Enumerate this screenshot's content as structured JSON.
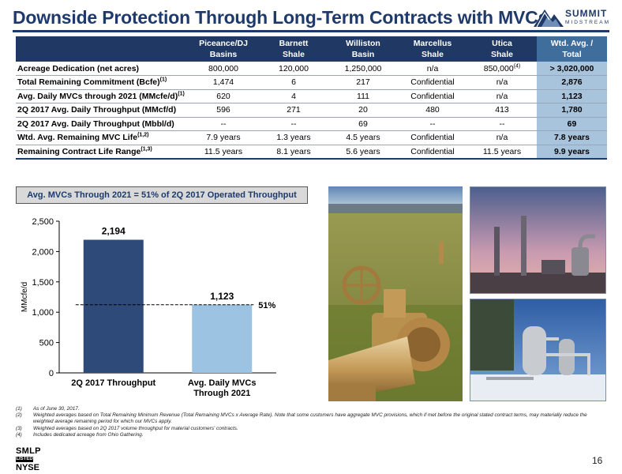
{
  "header": {
    "title": "Downside Protection Through Long-Term Contracts with MVCs",
    "logo_word": "SUMMIT",
    "logo_sub": "MIDSTREAM"
  },
  "table": {
    "columns": [
      {
        "line1": "Piceance/DJ",
        "line2": "Basins"
      },
      {
        "line1": "Barnett",
        "line2": "Shale"
      },
      {
        "line1": "Williston",
        "line2": "Basin"
      },
      {
        "line1": "Marcellus",
        "line2": "Shale"
      },
      {
        "line1": "Utica",
        "line2": "Shale"
      },
      {
        "line1": "Wtd. Avg. /",
        "line2": "Total"
      }
    ],
    "rows": [
      {
        "label": "Acreage Dedication (net acres)",
        "sup": "",
        "cells": [
          "800,000",
          "120,000",
          "1,250,000",
          "n/a",
          "850,000",
          "> 3,020,000"
        ],
        "cell_sup": [
          "",
          "",
          "",
          "",
          "(4)",
          ""
        ]
      },
      {
        "label": "Total Remaining Commitment (Bcfe)",
        "sup": "(1)",
        "cells": [
          "1,474",
          "6",
          "217",
          "Confidential",
          "n/a",
          "2,876"
        ],
        "cell_sup": [
          "",
          "",
          "",
          "",
          "",
          ""
        ]
      },
      {
        "label": "Avg. Daily MVCs through 2021 (MMcfe/d)",
        "sup": "(1)",
        "cells": [
          "620",
          "4",
          "111",
          "Confidential",
          "n/a",
          "1,123"
        ],
        "cell_sup": [
          "",
          "",
          "",
          "",
          "",
          ""
        ]
      },
      {
        "label": "2Q 2017 Avg. Daily Throughput (MMcf/d)",
        "sup": "",
        "cells": [
          "596",
          "271",
          "20",
          "480",
          "413",
          "1,780"
        ],
        "cell_sup": [
          "",
          "",
          "",
          "",
          "",
          ""
        ]
      },
      {
        "label": "2Q 2017 Avg. Daily Throughput (Mbbl/d)",
        "sup": "",
        "cells": [
          "--",
          "--",
          "69",
          "--",
          "--",
          "69"
        ],
        "cell_sup": [
          "",
          "",
          "",
          "",
          "",
          ""
        ]
      },
      {
        "label": "Wtd. Avg. Remaining MVC Life",
        "sup": "(1,2)",
        "cells": [
          "7.9 years",
          "1.3 years",
          "4.5 years",
          "Confidential",
          "n/a",
          "7.8 years"
        ],
        "cell_sup": [
          "",
          "",
          "",
          "",
          "",
          ""
        ]
      },
      {
        "label": "Remaining Contract Life Range",
        "sup": "(1,3)",
        "cells": [
          "11.5 years",
          "8.1 years",
          "5.6 years",
          "Confidential",
          "11.5 years",
          "9.9 years"
        ],
        "cell_sup": [
          "",
          "",
          "",
          "",
          "",
          ""
        ]
      }
    ]
  },
  "chart_banner": "Avg. MVCs Through 2021 = 51% of 2Q 2017 Operated Throughput",
  "chart_data": {
    "type": "bar",
    "categories": [
      "2Q 2017 Throughput",
      "Avg. Daily MVCs Through 2021"
    ],
    "category_lines": [
      [
        "2Q 2017 Throughput"
      ],
      [
        "Avg. Daily MVCs",
        "Through 2021"
      ]
    ],
    "values": [
      2194,
      1123
    ],
    "value_labels": [
      "2,194",
      "1,123"
    ],
    "colors": [
      "#2d4a78",
      "#9dc3e2"
    ],
    "ylabel": "MMcfe/d",
    "ylim": [
      0,
      2500
    ],
    "yticks": [
      0,
      500,
      1000,
      1500,
      2000,
      2500
    ],
    "ytick_labels": [
      "0",
      "500",
      "1,000",
      "1,500",
      "2,000",
      "2,500"
    ],
    "reference_line": {
      "value": 1123,
      "label": "51%"
    },
    "grid": false
  },
  "footnotes": [
    {
      "num": "(1)",
      "text": "As of June 30, 2017."
    },
    {
      "num": "(2)",
      "text": "Weighted averages based on Total Remaining Minimum Revenue (Total Remaining MVCs x Average Rate). Note that some customers have aggregate MVC provisions, which if met before the original stated contract terms, may materially reduce the weighted average remaining period for which our MVCs apply."
    },
    {
      "num": "(3)",
      "text": "Weighted averages based on 2Q 2017 volume throughput for material customers' contracts."
    },
    {
      "num": "(4)",
      "text": "Includes dedicated acreage from Ohio Gathering."
    }
  ],
  "ticker": {
    "top": "SMLP",
    "mid": "LISTED",
    "bottom": "NYSE"
  },
  "page_number": "16"
}
